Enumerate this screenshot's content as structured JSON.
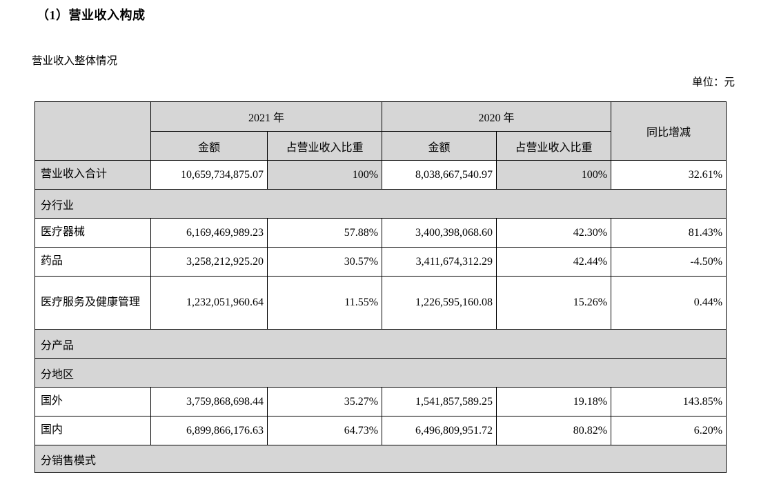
{
  "page": {
    "title": "（1）营业收入构成",
    "subtitle": "营业收入整体情况",
    "unit_label": "单位：元"
  },
  "table": {
    "header": {
      "year_2021": "2021 年",
      "year_2020": "2020 年",
      "amount": "金额",
      "ratio": "占营业收入比重",
      "yoy": "同比增减"
    },
    "rows": [
      {
        "type": "data",
        "shaded": true,
        "label": "营业收入合计",
        "amount_2021": "10,659,734,875.07",
        "ratio_2021": "100%",
        "amount_2020": "8,038,667,540.97",
        "ratio_2020": "100%",
        "yoy": "32.61%"
      },
      {
        "type": "section",
        "label": "分行业"
      },
      {
        "type": "data",
        "label": "医疗器械",
        "amount_2021": "6,169,469,989.23",
        "ratio_2021": "57.88%",
        "amount_2020": "3,400,398,068.60",
        "ratio_2020": "42.30%",
        "yoy": "81.43%"
      },
      {
        "type": "data",
        "label": "药品",
        "amount_2021": "3,258,212,925.20",
        "ratio_2021": "30.57%",
        "amount_2020": "3,411,674,312.29",
        "ratio_2020": "42.44%",
        "yoy": "-4.50%"
      },
      {
        "type": "data",
        "tall": true,
        "label": "医疗服务及健康管理",
        "amount_2021": "1,232,051,960.64",
        "ratio_2021": "11.55%",
        "amount_2020": "1,226,595,160.08",
        "ratio_2020": "15.26%",
        "yoy": "0.44%"
      },
      {
        "type": "section",
        "label": "分产品"
      },
      {
        "type": "section",
        "label": "分地区"
      },
      {
        "type": "data",
        "label": "国外",
        "amount_2021": "3,759,868,698.44",
        "ratio_2021": "35.27%",
        "amount_2020": "1,541,857,589.25",
        "ratio_2020": "19.18%",
        "yoy": "143.85%"
      },
      {
        "type": "data",
        "label": "国内",
        "amount_2021": "6,899,866,176.63",
        "ratio_2021": "64.73%",
        "amount_2020": "6,496,809,951.72",
        "ratio_2020": "80.82%",
        "yoy": "6.20%"
      },
      {
        "type": "section",
        "last": true,
        "label": "分销售模式"
      }
    ]
  },
  "colors": {
    "shade": "#d6d6d6",
    "border": "#000000",
    "text": "#000000"
  }
}
